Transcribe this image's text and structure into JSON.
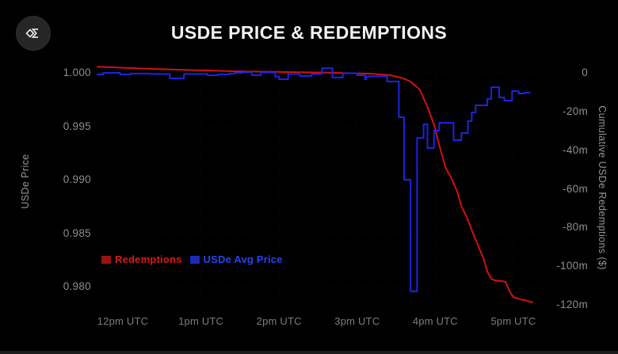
{
  "header": {
    "title": "USDE PRICE & REDEMPTIONS"
  },
  "logo": {
    "name": "ethena-sigma-logo"
  },
  "colors": {
    "background": "#000000",
    "redemptions_line": "#d01212",
    "price_line": "#1d24e0",
    "legend_red_text": "#d51a1a",
    "legend_blue_text": "#2743f0",
    "tick_text": "#8e8e8e",
    "title_text": "#f2f2f2"
  },
  "chart_data": {
    "type": "line",
    "title": "USDE PRICE & REDEMPTIONS",
    "grid": "faint-dotted",
    "x_axis": {
      "tick_labels": [
        "12pm UTC",
        "1pm UTC",
        "2pm UTC",
        "3pm UTC",
        "4pm UTC",
        "5pm UTC"
      ],
      "tick_minutes": [
        0,
        60,
        120,
        180,
        240,
        300
      ],
      "range_minutes": [
        -22,
        327
      ]
    },
    "left_axis": {
      "label": "USDe Price",
      "tick_labels": [
        "1.000",
        "0.995",
        "0.990",
        "0.985",
        "0.980"
      ],
      "tick_values": [
        1.0,
        0.995,
        0.99,
        0.985,
        0.98
      ],
      "range": [
        1.0006,
        0.9779
      ]
    },
    "right_axis": {
      "label": "Cumulative USDe Redemptions ($)",
      "tick_labels": [
        "0",
        "-20m",
        "-40m",
        "-60m",
        "-80m",
        "-100m",
        "-120m"
      ],
      "tick_values": [
        0,
        -20,
        -40,
        -60,
        -80,
        -100,
        -120
      ],
      "range": [
        3.3,
        -122.0
      ],
      "unit": "millions USD"
    },
    "legend": [
      {
        "label": "Redemptions",
        "text_color": "#d51a1a",
        "swatch_color": "#9a1313"
      },
      {
        "label": "USDe Avg Price",
        "text_color": "#2743f0",
        "swatch_color": "#1b2bb4"
      }
    ],
    "series": [
      {
        "name": "Redemptions",
        "axis": "right",
        "color": "#d01212",
        "width": 2,
        "interpolation": "linear",
        "points": [
          [
            -20,
            3.2
          ],
          [
            15,
            2.2
          ],
          [
            85,
            0.8
          ],
          [
            150,
            0.2
          ],
          [
            190,
            -0.4
          ],
          [
            205,
            -1.2
          ],
          [
            214,
            -2.5
          ],
          [
            221,
            -4.5
          ],
          [
            228,
            -8.6
          ],
          [
            234,
            -17.6
          ],
          [
            239,
            -26.6
          ],
          [
            242,
            -34.8
          ],
          [
            245,
            -42.2
          ],
          [
            248,
            -49.1
          ],
          [
            253,
            -55.3
          ],
          [
            257,
            -61.8
          ],
          [
            260,
            -68.8
          ],
          [
            265,
            -76.0
          ],
          [
            269,
            -83.0
          ],
          [
            273,
            -89.5
          ],
          [
            277,
            -96.0
          ],
          [
            280,
            -102.8
          ],
          [
            283,
            -106.5
          ],
          [
            285,
            -107.2
          ],
          [
            294,
            -108.0
          ],
          [
            297,
            -113.0
          ],
          [
            300,
            -116.0
          ],
          [
            305,
            -117.0
          ],
          [
            310,
            -117.8
          ],
          [
            315,
            -118.8
          ]
        ]
      },
      {
        "name": "USDe Avg Price",
        "axis": "left",
        "color": "#1d24e0",
        "width": 2,
        "interpolation": "step-after",
        "points": [
          [
            -20,
            0.99985
          ],
          [
            -15,
            1.0
          ],
          [
            -2,
            0.99985
          ],
          [
            6,
            0.99993
          ],
          [
            21,
            0.99989
          ],
          [
            36,
            0.99948
          ],
          [
            47,
            0.99989
          ],
          [
            65,
            0.99978
          ],
          [
            73,
            0.99985
          ],
          [
            82,
            0.99993
          ],
          [
            86,
            1.0
          ],
          [
            92,
            1.00007
          ],
          [
            99,
            0.99978
          ],
          [
            106,
            1.00004
          ],
          [
            117,
            0.99965
          ],
          [
            120,
            0.99941
          ],
          [
            127,
            0.99989
          ],
          [
            136,
            0.9997
          ],
          [
            145,
            0.99989
          ],
          [
            153,
            1.00044
          ],
          [
            161,
            0.99956
          ],
          [
            169,
            0.99996
          ],
          [
            180,
            0.99978
          ],
          [
            186,
            0.99941
          ],
          [
            187,
            0.99967
          ],
          [
            203,
            0.99919
          ],
          [
            212,
            0.99585
          ],
          [
            216,
            0.99
          ],
          [
            221,
            0.97956
          ],
          [
            226,
            0.9939
          ],
          [
            231,
            0.99519
          ],
          [
            234,
            0.99296
          ],
          [
            239,
            0.99459
          ],
          [
            243,
            0.99533
          ],
          [
            254,
            0.9937
          ],
          [
            260,
            0.99437
          ],
          [
            265,
            0.99548
          ],
          [
            268,
            0.9963
          ],
          [
            271,
            0.99696
          ],
          [
            280,
            0.99756
          ],
          [
            283,
            0.99867
          ],
          [
            289,
            0.9977
          ],
          [
            293,
            0.99741
          ],
          [
            299,
            0.99829
          ],
          [
            304,
            0.99807
          ],
          [
            308,
            0.99815
          ],
          [
            313,
            0.99815
          ]
        ]
      }
    ]
  }
}
